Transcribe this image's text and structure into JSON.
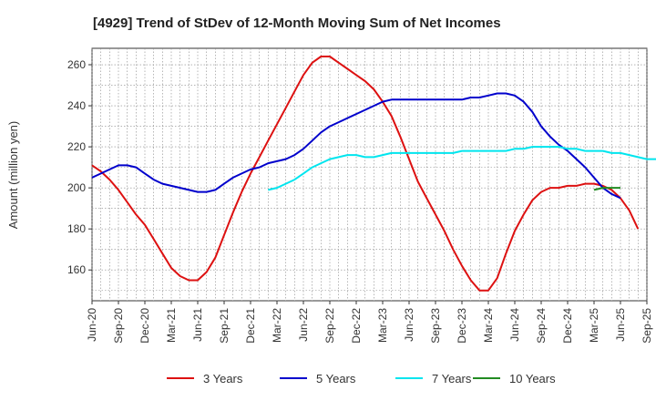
{
  "chart_data": {
    "type": "line",
    "title": "[4929]  Trend of StDev of 12-Month Moving Sum of Net Incomes",
    "xlabel": "",
    "ylabel": "Amount (million yen)",
    "ylim": [
      145,
      268
    ],
    "yticks": [
      160,
      180,
      200,
      220,
      240,
      260
    ],
    "x_start": "Jun-20",
    "x_end": "Sep-25",
    "xticks": [
      "Jun-20",
      "Sep-20",
      "Dec-20",
      "Mar-21",
      "Jun-21",
      "Sep-21",
      "Dec-21",
      "Mar-22",
      "Jun-22",
      "Sep-22",
      "Dec-22",
      "Mar-23",
      "Jun-23",
      "Sep-23",
      "Dec-23",
      "Mar-24",
      "Jun-24",
      "Sep-24",
      "Dec-24",
      "Mar-25",
      "Jun-25",
      "Sep-25"
    ],
    "grid": true,
    "legend_position": "bottom",
    "series": [
      {
        "name": "3 Years",
        "color": "#dd1111",
        "start": "Jun-20",
        "values": [
          211,
          208,
          204,
          199,
          193,
          187,
          182,
          175,
          168,
          161,
          157,
          155,
          155,
          159,
          166,
          177,
          188,
          198,
          207,
          215,
          223,
          231,
          239,
          247,
          255,
          261,
          264,
          264,
          261,
          258,
          255,
          252,
          248,
          242,
          235,
          225,
          214,
          203,
          195,
          187,
          179,
          170,
          162,
          155,
          150,
          150,
          156,
          168,
          179,
          187,
          194,
          198,
          200,
          200,
          201,
          201,
          202,
          202,
          201,
          199,
          195,
          189,
          180
        ]
      },
      {
        "name": "5 Years",
        "color": "#0000cc",
        "start": "Jun-20",
        "values": [
          205,
          207,
          209,
          211,
          211,
          210,
          207,
          204,
          202,
          201,
          200,
          199,
          198,
          198,
          199,
          202,
          205,
          207,
          209,
          210,
          212,
          213,
          214,
          216,
          219,
          223,
          227,
          230,
          232,
          234,
          236,
          238,
          240,
          242,
          243,
          243,
          243,
          243,
          243,
          243,
          243,
          243,
          243,
          244,
          244,
          245,
          246,
          246,
          245,
          242,
          237,
          230,
          225,
          221,
          218,
          214,
          210,
          205,
          200,
          197,
          195
        ]
      },
      {
        "name": "7 Years",
        "color": "#00e5ee",
        "start": "Feb-22",
        "values": [
          199,
          200,
          202,
          204,
          207,
          210,
          212,
          214,
          215,
          216,
          216,
          215,
          215,
          216,
          217,
          217,
          217,
          217,
          217,
          217,
          217,
          217,
          218,
          218,
          218,
          218,
          218,
          218,
          219,
          219,
          220,
          220,
          220,
          220,
          219,
          219,
          218,
          218,
          218,
          217,
          217,
          216,
          215,
          214,
          214,
          214,
          213
        ]
      },
      {
        "name": "10 Years",
        "color": "#228b22",
        "start": "Mar-25",
        "values": [
          199,
          200,
          200,
          200
        ]
      }
    ]
  }
}
